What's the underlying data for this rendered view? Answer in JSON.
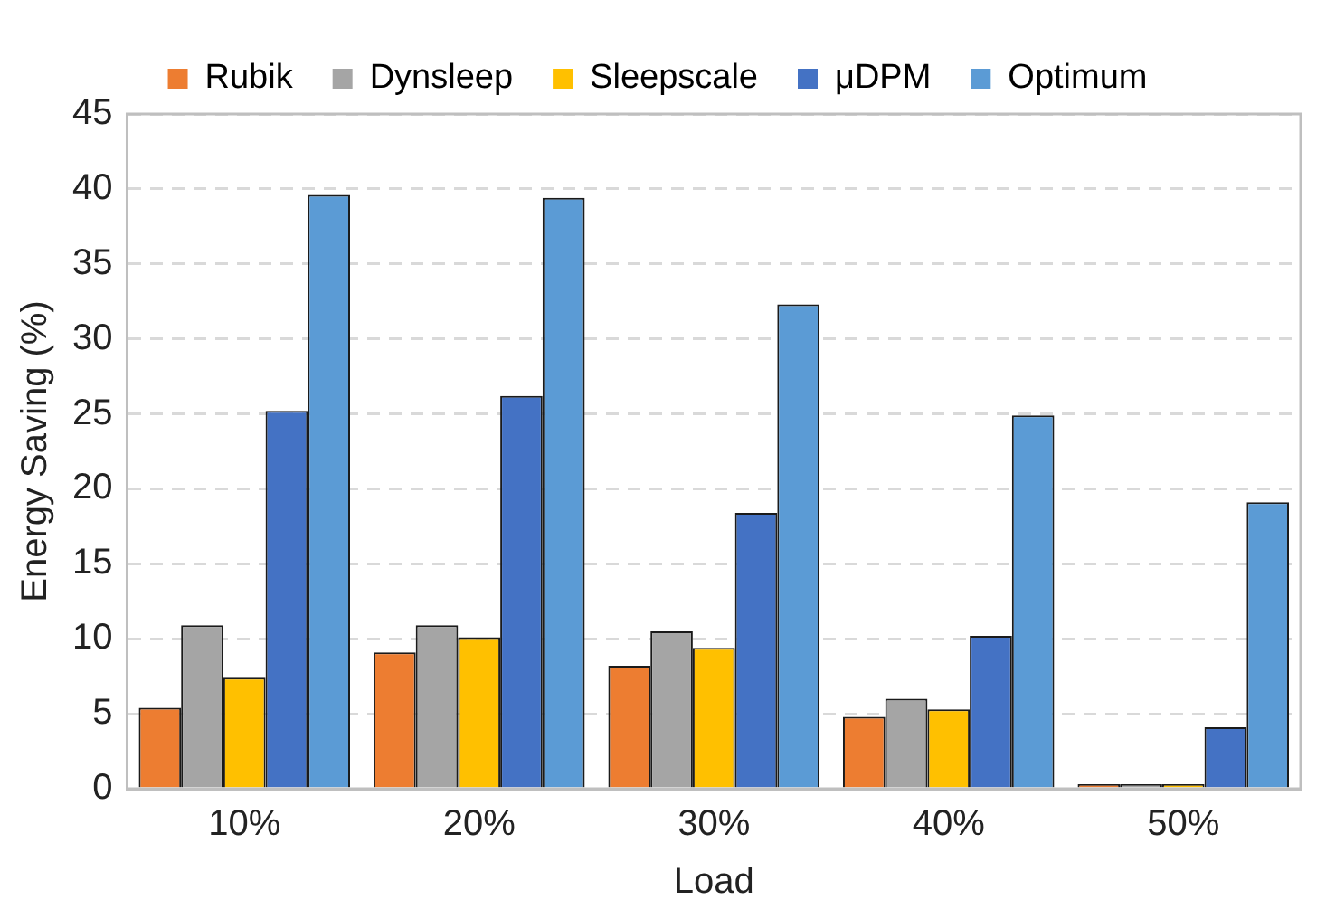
{
  "chart_data": {
    "type": "bar",
    "xlabel": "Load",
    "ylabel": "Energy Saving (%)",
    "categories": [
      "10%",
      "20%",
      "30%",
      "40%",
      "50%"
    ],
    "series": [
      {
        "name": "Rubik",
        "color": "#ed7d31",
        "values": [
          5.4,
          9.1,
          8.2,
          4.8,
          0.3
        ]
      },
      {
        "name": "Dynsleep",
        "color": "#a5a5a5",
        "values": [
          10.9,
          10.9,
          10.5,
          6.0,
          0.3
        ]
      },
      {
        "name": "Sleepscale",
        "color": "#ffc000",
        "values": [
          7.4,
          10.1,
          9.4,
          5.3,
          0.3
        ]
      },
      {
        "name": "μDPM",
        "color": "#4472c4",
        "values": [
          25.2,
          26.2,
          18.4,
          10.2,
          4.1
        ]
      },
      {
        "name": "Optimum",
        "color": "#5b9bd5",
        "values": [
          39.6,
          39.4,
          32.3,
          24.9,
          19.1
        ]
      }
    ],
    "ylim": [
      0,
      45
    ],
    "yticks": [
      0,
      5,
      10,
      15,
      20,
      25,
      30,
      35,
      40,
      45
    ],
    "grid": "y",
    "legend": "top"
  }
}
